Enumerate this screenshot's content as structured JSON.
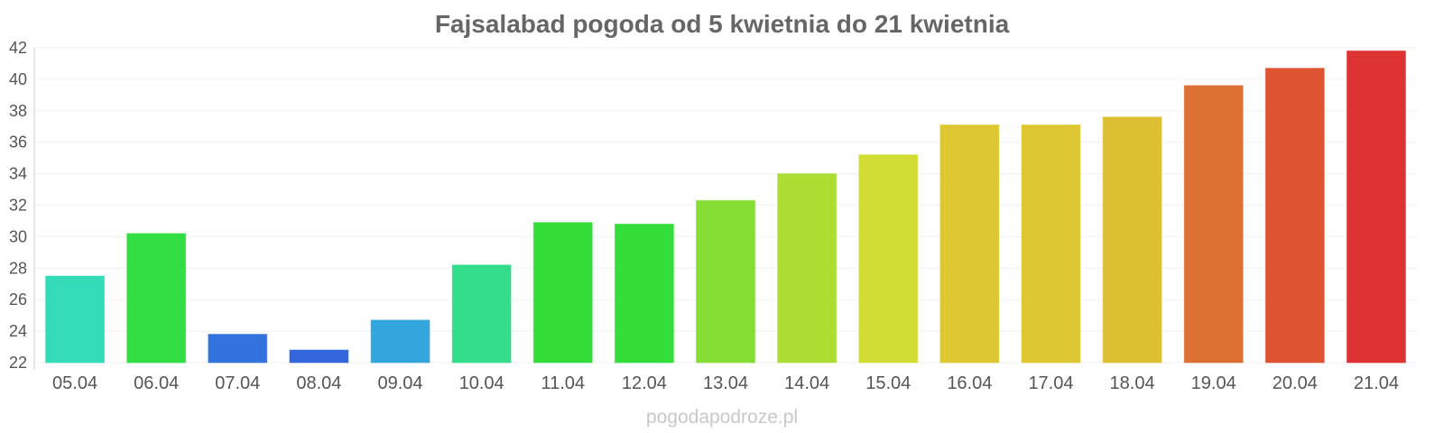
{
  "chart_data": {
    "type": "bar",
    "title": "Fajsalabad pogoda od 5 kwietnia do 21 kwietnia",
    "xlabel": "",
    "ylabel": "",
    "ylim": [
      22,
      42
    ],
    "yticks": [
      22,
      24,
      26,
      28,
      30,
      32,
      34,
      36,
      38,
      40,
      42
    ],
    "grid": true,
    "legend": "none",
    "categories": [
      "05.04",
      "06.04",
      "07.04",
      "08.04",
      "09.04",
      "10.04",
      "11.04",
      "12.04",
      "13.04",
      "14.04",
      "15.04",
      "16.04",
      "17.04",
      "18.04",
      "19.04",
      "20.04",
      "21.04"
    ],
    "values": [
      27.5,
      30.2,
      23.8,
      22.8,
      24.7,
      28.2,
      30.9,
      30.8,
      32.3,
      34.0,
      35.2,
      37.1,
      37.1,
      37.6,
      39.6,
      40.7,
      41.8
    ],
    "colors": [
      "#33dbb9",
      "#33dd44",
      "#3373dd",
      "#3366dd",
      "#33a6dd",
      "#33dd8a",
      "#33dd3a",
      "#33dd3a",
      "#85dd33",
      "#acdd33",
      "#d1dd33",
      "#ddc833",
      "#ddc833",
      "#ddbf33",
      "#dd7033",
      "#dd5433",
      "#dd3333"
    ]
  },
  "watermark": "pogodapodroze.pl"
}
